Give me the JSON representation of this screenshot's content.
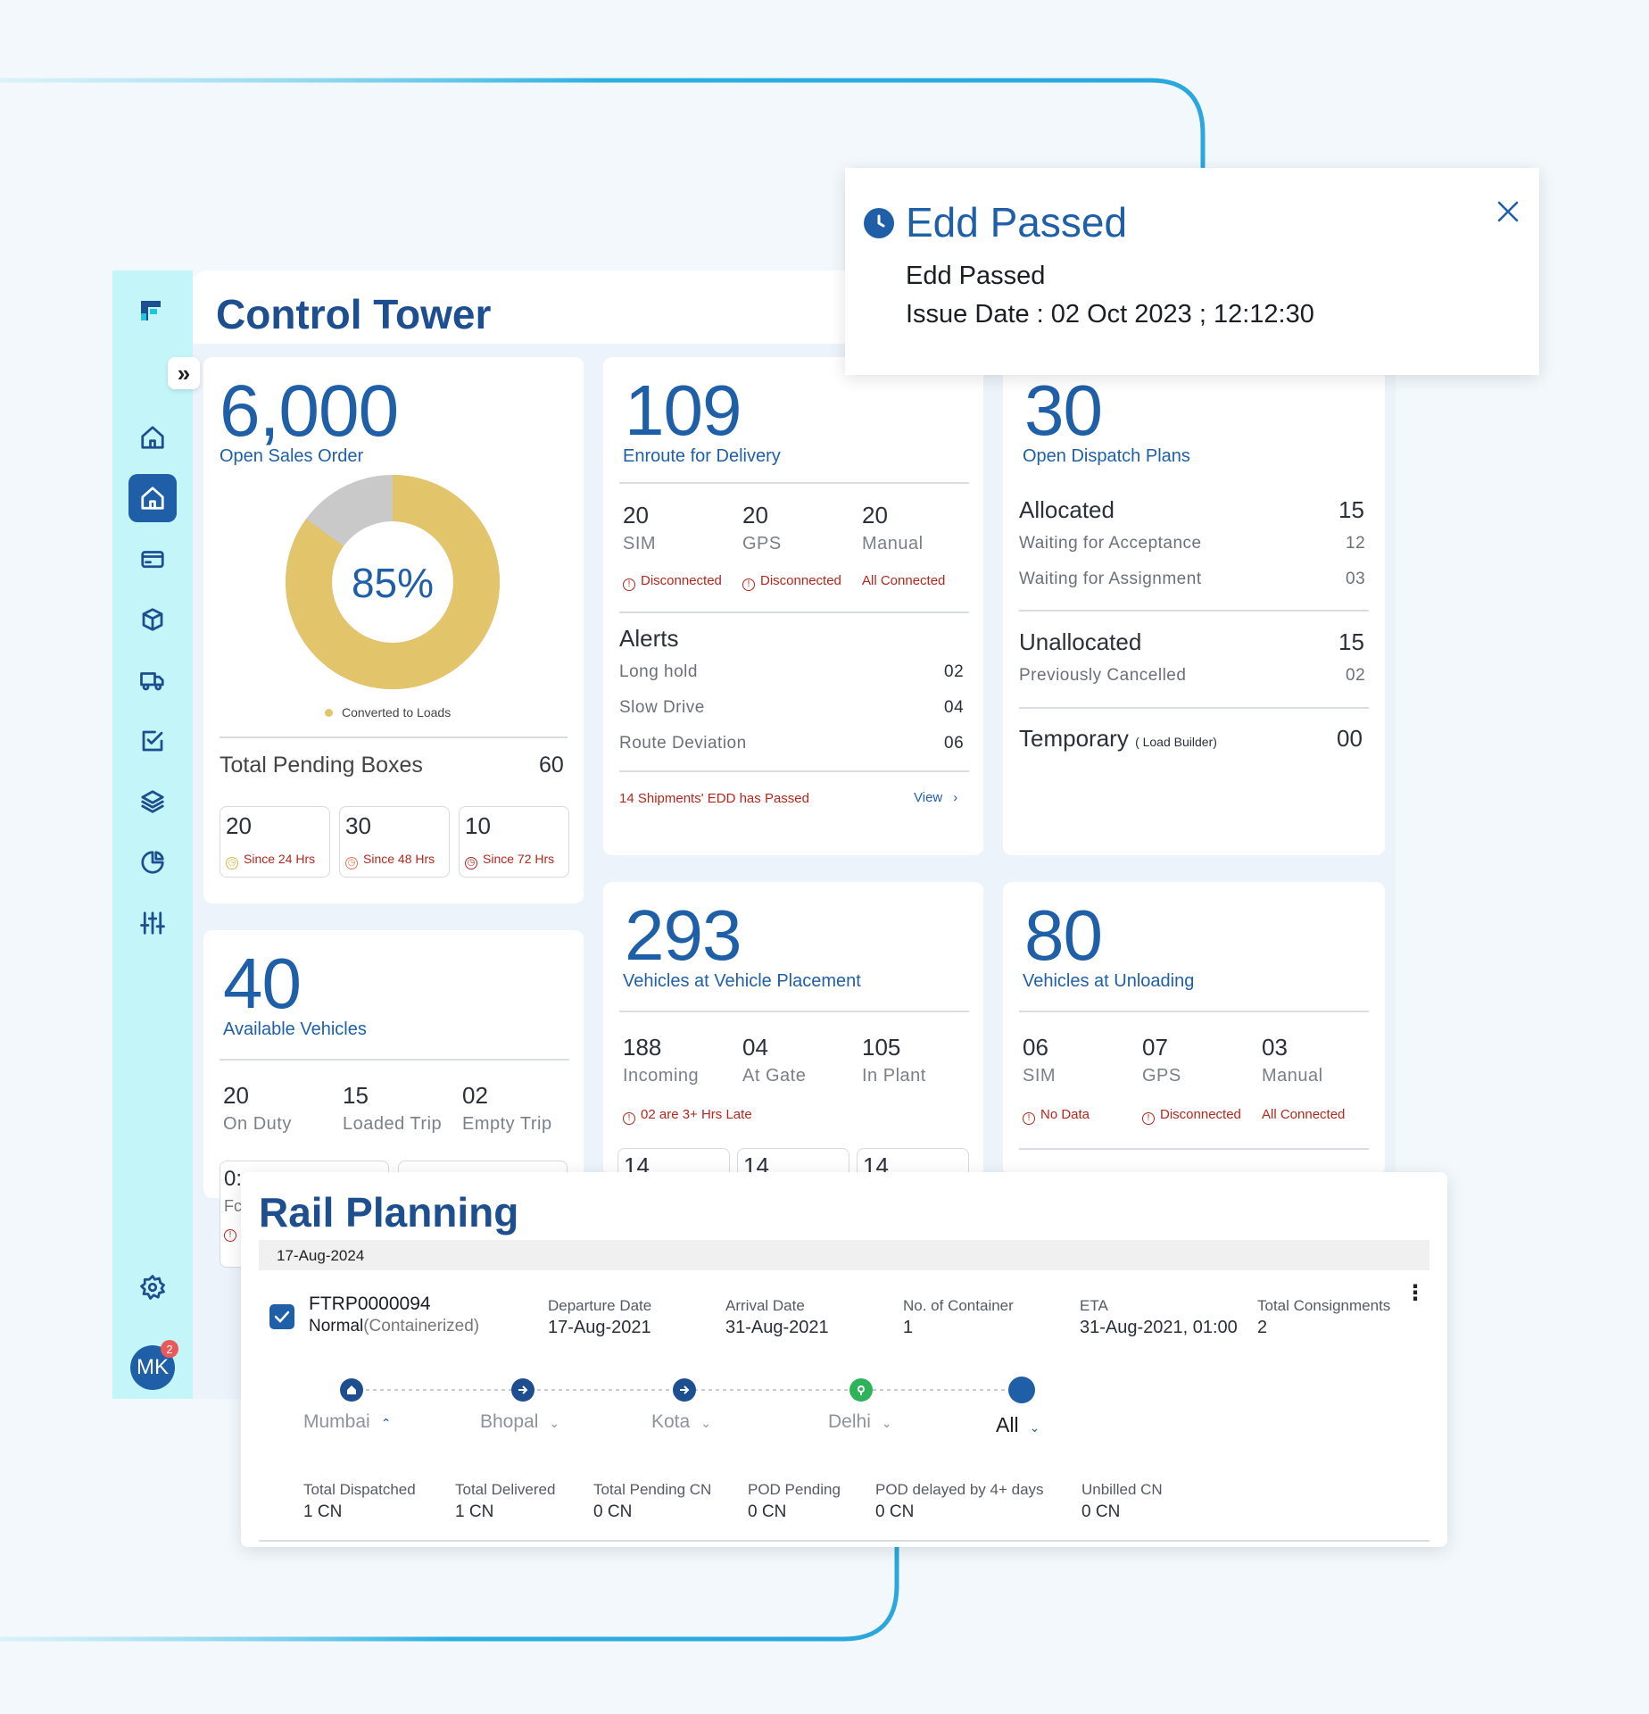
{
  "header": {
    "title": "Control Tower"
  },
  "sales": {
    "value": "6,000",
    "label": "Open Sales Order",
    "percent": "85%",
    "percent_value": 85,
    "legend": "Converted to Loads",
    "pending_label": "Total Pending Boxes",
    "pending_value": "60",
    "boxes": [
      {
        "value": "20",
        "label": "Since 24 Hrs"
      },
      {
        "value": "30",
        "label": "Since 48 Hrs"
      },
      {
        "value": "10",
        "label": "Since 72 Hrs"
      }
    ]
  },
  "enroute": {
    "value": "109",
    "label": "Enroute for Delivery",
    "trackers": [
      {
        "value": "20",
        "name": "SIM",
        "status": "Disconnected"
      },
      {
        "value": "20",
        "name": "GPS",
        "status": "Disconnected"
      },
      {
        "value": "20",
        "name": "Manual",
        "status": "All Connected"
      }
    ],
    "alerts_title": "Alerts",
    "alerts": [
      {
        "label": "Long hold",
        "value": "02"
      },
      {
        "label": "Slow Drive",
        "value": "04"
      },
      {
        "label": "Route Deviation",
        "value": "06"
      }
    ],
    "edd_note": "14 Shipments' EDD has Passed",
    "view_label": "View"
  },
  "dispatch": {
    "value": "30",
    "label": "Open Dispatch Plans",
    "allocated": {
      "label": "Allocated",
      "value": "15"
    },
    "waiting_acceptance": {
      "label": "Waiting for Acceptance",
      "value": "12"
    },
    "waiting_assignment": {
      "label": "Waiting for Assignment",
      "value": "03"
    },
    "unallocated": {
      "label": "Unallocated",
      "value": "15"
    },
    "cancelled": {
      "label": "Previously Cancelled",
      "value": "02"
    },
    "temporary": {
      "label": "Temporary",
      "note": "( Load Builder)",
      "value": "00"
    }
  },
  "available": {
    "value": "40",
    "label": "Available Vehicles",
    "items": [
      {
        "value": "20",
        "label": "On Duty"
      },
      {
        "value": "15",
        "label": "Loaded Trip"
      },
      {
        "value": "02",
        "label": "Empty Trip"
      }
    ],
    "partial_box": "0:",
    "partial_text": "Fc"
  },
  "placement": {
    "value": "293",
    "label": "Vehicles at Vehicle Placement",
    "items": [
      {
        "value": "188",
        "label": "Incoming"
      },
      {
        "value": "04",
        "label": "At Gate"
      },
      {
        "value": "105",
        "label": "In Plant"
      }
    ],
    "late_note": "02 are 3+ Hrs Late",
    "boxes": [
      "14",
      "14",
      "14"
    ]
  },
  "unloading": {
    "value": "80",
    "label": "Vehicles at Unloading",
    "items": [
      {
        "value": "06",
        "name": "SIM",
        "status": "No Data"
      },
      {
        "value": "07",
        "name": "GPS",
        "status": "Disconnected"
      },
      {
        "value": "03",
        "name": "Manual",
        "status": "All Connected"
      }
    ]
  },
  "popup": {
    "title": "Edd Passed",
    "line1": "Edd Passed",
    "line2": "Issue Date : 02 Oct 2023 ; 12:12:30"
  },
  "rail": {
    "title": "Rail Planning",
    "date": "17-Aug-2024",
    "trip_id": "FTRP0000094",
    "trip_type": "Normal",
    "trip_subtype": "(Containerized)",
    "fields": [
      {
        "label": "Departure Date",
        "value": "17-Aug-2021"
      },
      {
        "label": "Arrival Date",
        "value": "31-Aug-2021"
      },
      {
        "label": "No. of Container",
        "value": "1"
      },
      {
        "label": "ETA",
        "value": "31-Aug-2021, 01:00"
      },
      {
        "label": "Total Consignments",
        "value": "2"
      }
    ],
    "stops": [
      "Mumbai",
      "Bhopal",
      "Kota",
      "Delhi",
      "All"
    ],
    "stats": [
      {
        "label": "Total Dispatched",
        "value": "1 CN"
      },
      {
        "label": "Total Delivered",
        "value": "1 CN"
      },
      {
        "label": "Total Pending CN",
        "value": "0 CN"
      },
      {
        "label": "POD Pending",
        "value": "0 CN"
      },
      {
        "label": "POD delayed by 4+ days",
        "value": "0 CN"
      },
      {
        "label": "Unbilled CN",
        "value": "0 CN"
      }
    ]
  },
  "user": {
    "initials": "MK",
    "notifications": "2"
  },
  "colors": {
    "primary": "#1d4e8f",
    "accent": "#1f5fa8",
    "sidebar": "#c4f6f9",
    "donut": "#e2c46b",
    "alert": "#b3271d",
    "success": "#2fb35a"
  }
}
